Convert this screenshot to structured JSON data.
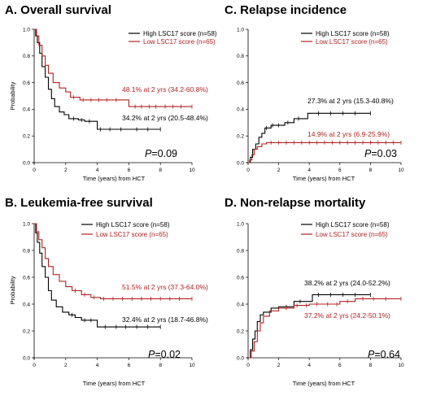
{
  "colors": {
    "high": "#000000",
    "low": "#b22222"
  },
  "chart_data": [
    {
      "type": "line",
      "title": "A. Overall survival",
      "xlabel": "Time (years) from HCT",
      "ylabel": "Probability",
      "xlim": [
        0,
        10
      ],
      "ylim": [
        0,
        1.0
      ],
      "x_ticks": [
        "0",
        "2",
        "4",
        "6",
        "8",
        "10"
      ],
      "y_ticks": [
        "0.0",
        "0.2",
        "0.4",
        "0.6",
        "0.8",
        "1.0"
      ],
      "legend": [
        "High LSC17 score (n=58)",
        "Low LSC17 score (n=65)"
      ],
      "annotation_high": "34.2% at 2 yrs (20.5-48.4%)",
      "annotation_low": "48.1% at 2 yrs (34.2-60.8%)",
      "p_value": "=0.09",
      "series": [
        {
          "name": "High LSC17 score (n=58)",
          "points": [
            [
              0,
              1.0
            ],
            [
              0.1,
              0.95
            ],
            [
              0.2,
              0.9
            ],
            [
              0.35,
              0.82
            ],
            [
              0.5,
              0.72
            ],
            [
              0.7,
              0.64
            ],
            [
              0.9,
              0.55
            ],
            [
              1.1,
              0.48
            ],
            [
              1.3,
              0.42
            ],
            [
              1.6,
              0.38
            ],
            [
              1.9,
              0.36
            ],
            [
              2.2,
              0.33
            ],
            [
              2.8,
              0.32
            ],
            [
              3.2,
              0.31
            ],
            [
              4.0,
              0.25
            ],
            [
              8.0,
              0.25
            ]
          ],
          "censor_x": [
            2.5,
            3.0,
            3.5,
            4.2,
            4.8,
            5.5,
            6.5,
            7.2,
            8.0
          ]
        },
        {
          "name": "Low LSC17 score (n=65)",
          "points": [
            [
              0,
              1.0
            ],
            [
              0.15,
              0.95
            ],
            [
              0.3,
              0.88
            ],
            [
              0.5,
              0.8
            ],
            [
              0.7,
              0.73
            ],
            [
              0.9,
              0.67
            ],
            [
              1.2,
              0.6
            ],
            [
              1.6,
              0.56
            ],
            [
              2.0,
              0.53
            ],
            [
              2.3,
              0.49
            ],
            [
              2.9,
              0.47
            ],
            [
              3.5,
              0.47
            ],
            [
              6.0,
              0.42
            ],
            [
              10.0,
              0.42
            ]
          ],
          "censor_x": [
            2.5,
            3.1,
            3.6,
            4.1,
            4.6,
            5.2,
            6.4,
            6.8,
            7.3,
            7.7,
            8.3,
            8.8,
            9.3,
            10.0
          ]
        }
      ]
    },
    {
      "type": "line",
      "title": "C. Relapse incidence",
      "xlabel": "Time (years) from HCT",
      "ylabel": "",
      "xlim": [
        0,
        10
      ],
      "ylim": [
        0,
        1.0
      ],
      "x_ticks": [
        "0",
        "2",
        "4",
        "6",
        "8",
        "10"
      ],
      "y_ticks": [
        "0.0",
        "0.2",
        "0.4",
        "0.6",
        "0.8",
        "1.0"
      ],
      "legend": [
        "High LSC17 score (n=58)",
        "Low LSC17 score (n=65)"
      ],
      "annotation_high": "27.3% at 2 yrs (15.3-40.8%)",
      "annotation_low": "14.9% at 2 yrs (6.9-25.9%)",
      "p_value": "=0.03",
      "series": [
        {
          "name": "High LSC17 score (n=58)",
          "points": [
            [
              0,
              0
            ],
            [
              0.15,
              0.04
            ],
            [
              0.3,
              0.1
            ],
            [
              0.5,
              0.14
            ],
            [
              0.7,
              0.19
            ],
            [
              0.9,
              0.22
            ],
            [
              1.1,
              0.26
            ],
            [
              1.5,
              0.28
            ],
            [
              2.4,
              0.3
            ],
            [
              3.0,
              0.33
            ],
            [
              3.9,
              0.37
            ],
            [
              8.0,
              0.37
            ]
          ],
          "censor_x": [
            1.2,
            1.6,
            2.0,
            2.6,
            3.3,
            4.6,
            5.4,
            6.2,
            7.0,
            8.0
          ]
        },
        {
          "name": "Low LSC17 score (n=65)",
          "points": [
            [
              0,
              0
            ],
            [
              0.1,
              0.02
            ],
            [
              0.25,
              0.06
            ],
            [
              0.4,
              0.1
            ],
            [
              0.6,
              0.12
            ],
            [
              0.9,
              0.14
            ],
            [
              1.2,
              0.15
            ],
            [
              10.0,
              0.15
            ]
          ],
          "censor_x": [
            1.5,
            2.0,
            2.5,
            3.0,
            3.5,
            4.0,
            4.5,
            5.0,
            5.5,
            6.0,
            6.5,
            7.0,
            7.5,
            8.0,
            8.5,
            9.0,
            9.5,
            10.0
          ]
        }
      ]
    },
    {
      "type": "line",
      "title": "B. Leukemia-free survival",
      "xlabel": "Time (years) from HCT",
      "ylabel": "Probability",
      "xlim": [
        0,
        10
      ],
      "ylim": [
        0,
        1.0
      ],
      "x_ticks": [
        "0",
        "2",
        "4",
        "6",
        "8",
        "10"
      ],
      "y_ticks": [
        "0.0",
        "0.2",
        "0.4",
        "0.6",
        "0.8",
        "1.0"
      ],
      "legend": [
        "High LSC17 score (n=58)",
        "Low LSC17 score (n=65)"
      ],
      "annotation_high": "32.4% at 2 yrs (18.7-46.8%)",
      "annotation_low": "51.5% at 2 yrs (37.3-64.0%)",
      "p_value": "=0.02",
      "series": [
        {
          "name": "High LSC17 score (n=58)",
          "points": [
            [
              0,
              1.0
            ],
            [
              0.1,
              0.93
            ],
            [
              0.2,
              0.86
            ],
            [
              0.35,
              0.78
            ],
            [
              0.5,
              0.68
            ],
            [
              0.7,
              0.6
            ],
            [
              0.9,
              0.5
            ],
            [
              1.1,
              0.43
            ],
            [
              1.4,
              0.38
            ],
            [
              1.8,
              0.34
            ],
            [
              2.2,
              0.32
            ],
            [
              2.6,
              0.3
            ],
            [
              3.0,
              0.28
            ],
            [
              4.0,
              0.23
            ],
            [
              8.0,
              0.23
            ]
          ],
          "censor_x": [
            2.4,
            3.2,
            3.6,
            4.5,
            5.2,
            5.8,
            6.5,
            7.2,
            8.0
          ]
        },
        {
          "name": "Low LSC17 score (n=65)",
          "points": [
            [
              0,
              1.0
            ],
            [
              0.15,
              0.94
            ],
            [
              0.3,
              0.88
            ],
            [
              0.5,
              0.82
            ],
            [
              0.7,
              0.74
            ],
            [
              0.9,
              0.68
            ],
            [
              1.2,
              0.62
            ],
            [
              1.6,
              0.57
            ],
            [
              2.0,
              0.53
            ],
            [
              2.4,
              0.5
            ],
            [
              3.0,
              0.47
            ],
            [
              3.6,
              0.45
            ],
            [
              4.2,
              0.44
            ],
            [
              10.0,
              0.44
            ]
          ],
          "censor_x": [
            2.6,
            3.2,
            3.8,
            4.4,
            5.0,
            5.6,
            6.2,
            6.8,
            7.4,
            8.0,
            8.6,
            9.2,
            10.0
          ]
        }
      ]
    },
    {
      "type": "line",
      "title": "D. Non-relapse mortality",
      "xlabel": "Time (years) from HCT",
      "ylabel": "",
      "xlim": [
        0,
        10
      ],
      "ylim": [
        0,
        1.0
      ],
      "x_ticks": [
        "0",
        "2",
        "4",
        "6",
        "8",
        "10"
      ],
      "y_ticks": [
        "0.0",
        "0.2",
        "0.4",
        "0.6",
        "0.8",
        "1.0"
      ],
      "legend": [
        "High LSC17 score (n=58)",
        "Low LSC17 score (n=65)"
      ],
      "annotation_high": "38.2% at 2 yrs (24.0-52.2%)",
      "annotation_low": "37.2% at 2 yrs (24.2-50.1%)",
      "p_value": "=0.64",
      "series": [
        {
          "name": "High LSC17 score (n=58)",
          "points": [
            [
              0,
              0
            ],
            [
              0.15,
              0.06
            ],
            [
              0.3,
              0.14
            ],
            [
              0.45,
              0.2
            ],
            [
              0.6,
              0.27
            ],
            [
              0.8,
              0.32
            ],
            [
              1.0,
              0.34
            ],
            [
              1.5,
              0.37
            ],
            [
              2.0,
              0.38
            ],
            [
              3.0,
              0.42
            ],
            [
              4.0,
              0.42
            ],
            [
              4.2,
              0.47
            ],
            [
              8.0,
              0.47
            ]
          ],
          "censor_x": [
            2.5,
            3.4,
            4.6,
            5.4,
            6.2,
            7.0,
            8.0
          ]
        },
        {
          "name": "Low LSC17 score (n=65)",
          "points": [
            [
              0,
              0
            ],
            [
              0.2,
              0.05
            ],
            [
              0.4,
              0.12
            ],
            [
              0.6,
              0.2
            ],
            [
              0.8,
              0.26
            ],
            [
              1.0,
              0.31
            ],
            [
              1.4,
              0.35
            ],
            [
              2.0,
              0.37
            ],
            [
              3.0,
              0.39
            ],
            [
              4.0,
              0.4
            ],
            [
              6.0,
              0.42
            ],
            [
              7.0,
              0.44
            ],
            [
              10.0,
              0.44
            ]
          ],
          "censor_x": [
            2.5,
            3.2,
            3.8,
            4.5,
            5.2,
            5.8,
            6.5,
            7.5,
            8.2,
            9.0,
            10.0
          ]
        }
      ]
    }
  ]
}
